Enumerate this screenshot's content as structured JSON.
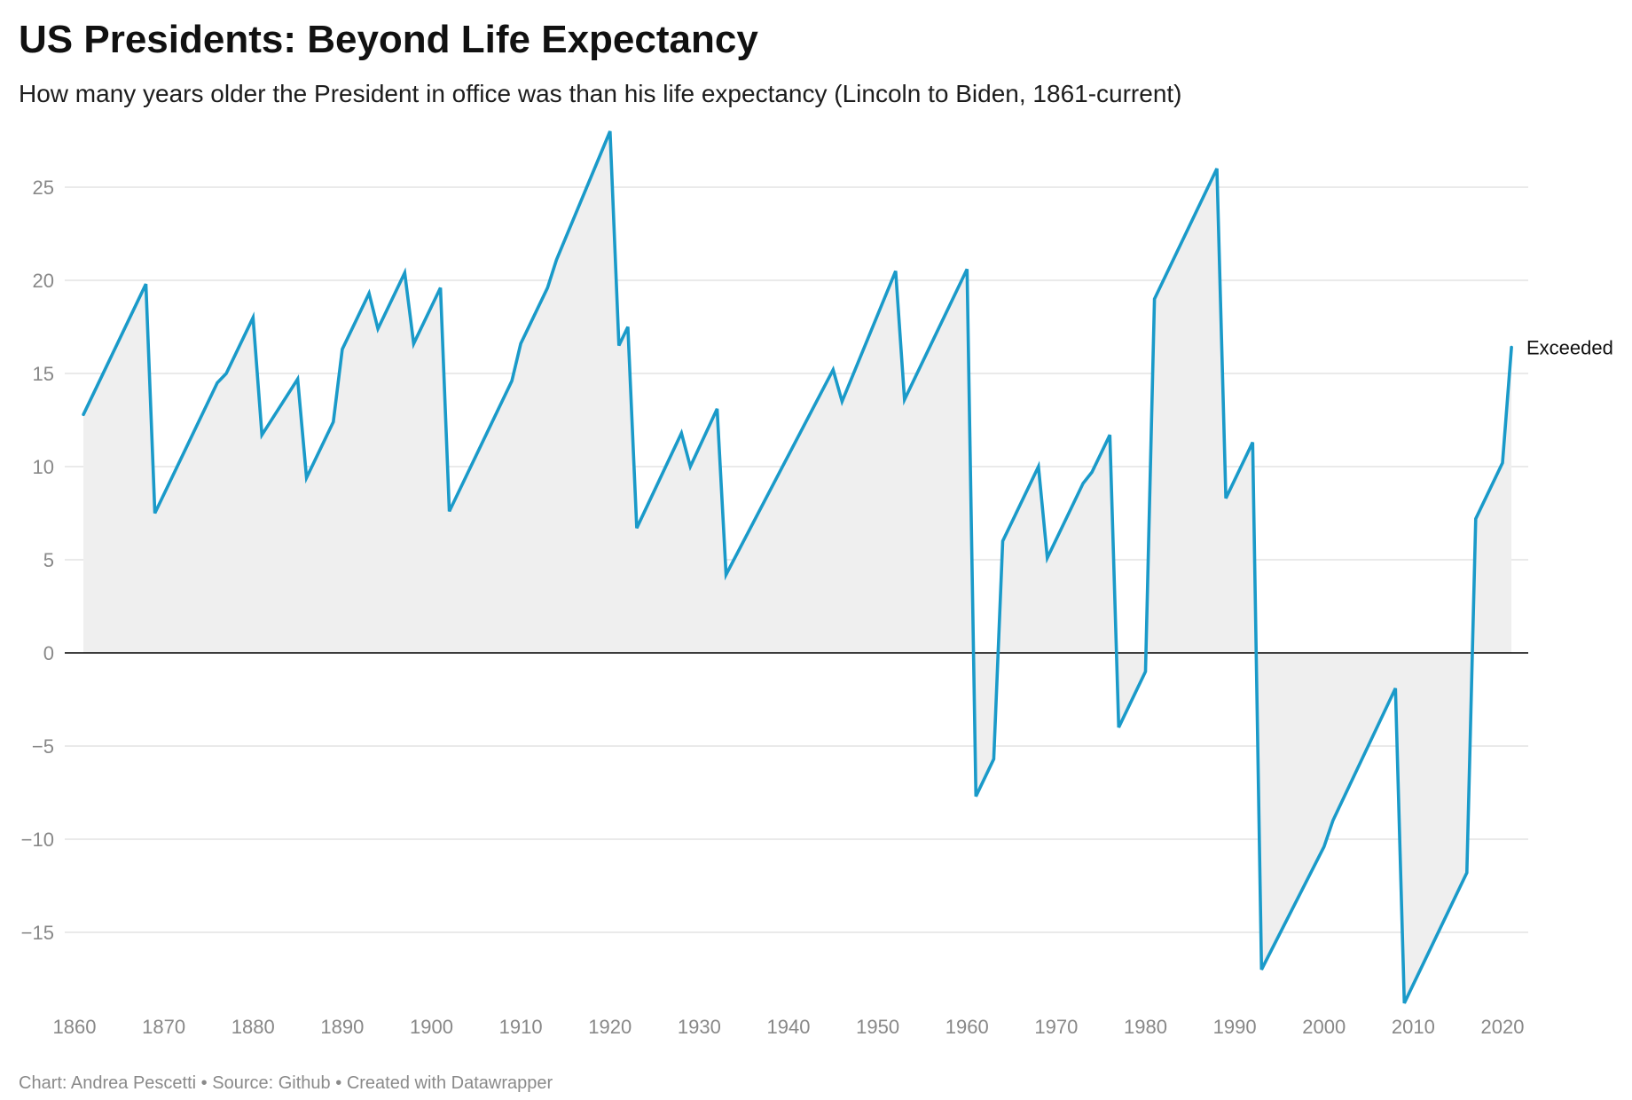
{
  "title": "US Presidents: Beyond Life Expectancy",
  "subtitle": "How many years older the President in office was than his life expectancy (Lincoln to Biden, 1861-current)",
  "footer": {
    "chart_credit": "Chart: Andrea Pescetti",
    "separator": "•",
    "source": "Source: Github",
    "tool": "Created with Datawrapper"
  },
  "colors": {
    "line": "#1a9ac9",
    "area": "#efefef",
    "zero_line": "#000000",
    "grid": "#dddddd",
    "tick_text": "#888888"
  },
  "chart_data": {
    "type": "area",
    "title": "US Presidents: Beyond Life Expectancy",
    "subtitle": "How many years older the President in office was than his life expectancy (Lincoln to Biden, 1861-current)",
    "xlabel": "",
    "ylabel": "",
    "xlim": [
      1860,
      2021
    ],
    "ylim": [
      -19,
      28
    ],
    "x_ticks": [
      1860,
      1870,
      1880,
      1890,
      1900,
      1910,
      1920,
      1930,
      1940,
      1950,
      1960,
      1970,
      1980,
      1990,
      2000,
      2010,
      2020
    ],
    "y_ticks": [
      25,
      20,
      15,
      10,
      5,
      0,
      -5,
      -10,
      -15
    ],
    "y_tick_labels": [
      "25",
      "20",
      "15",
      "10",
      "5",
      "0",
      "−5",
      "−10",
      "−15"
    ],
    "grid": true,
    "series": [
      {
        "name": "Exceeded",
        "label": "Exceeded",
        "points": [
          [
            1861,
            12.8
          ],
          [
            1868,
            19.8
          ],
          [
            1869,
            7.5
          ],
          [
            1876,
            14.5
          ],
          [
            1877,
            15.0
          ],
          [
            1880,
            18.0
          ],
          [
            1881,
            11.7
          ],
          [
            1885,
            14.7
          ],
          [
            1886,
            9.4
          ],
          [
            1889,
            12.4
          ],
          [
            1890,
            16.3
          ],
          [
            1893,
            19.3
          ],
          [
            1894,
            17.4
          ],
          [
            1897,
            20.4
          ],
          [
            1898,
            16.6
          ],
          [
            1901,
            19.6
          ],
          [
            1902,
            7.6
          ],
          [
            1909,
            14.6
          ],
          [
            1910,
            16.6
          ],
          [
            1913,
            19.6
          ],
          [
            1914,
            21.1
          ],
          [
            1920,
            28.0
          ],
          [
            1921,
            16.5
          ],
          [
            1922,
            17.5
          ],
          [
            1923,
            6.7
          ],
          [
            1928,
            11.8
          ],
          [
            1929,
            10.0
          ],
          [
            1932,
            13.1
          ],
          [
            1933,
            4.2
          ],
          [
            1945,
            15.2
          ],
          [
            1946,
            13.5
          ],
          [
            1952,
            20.5
          ],
          [
            1953,
            13.6
          ],
          [
            1960,
            20.6
          ],
          [
            1961,
            -7.7
          ],
          [
            1963,
            -5.7
          ],
          [
            1964,
            6.0
          ],
          [
            1968,
            10.0
          ],
          [
            1969,
            5.1
          ],
          [
            1973,
            9.1
          ],
          [
            1974,
            9.7
          ],
          [
            1976,
            11.7
          ],
          [
            1977,
            -4.0
          ],
          [
            1980,
            -1.0
          ],
          [
            1981,
            19.0
          ],
          [
            1988,
            26.0
          ],
          [
            1989,
            8.3
          ],
          [
            1992,
            11.3
          ],
          [
            1993,
            -17.0
          ],
          [
            2000,
            -10.4
          ],
          [
            2001,
            -9.0
          ],
          [
            2008,
            -1.9
          ],
          [
            2009,
            -18.8
          ],
          [
            2016,
            -11.8
          ],
          [
            2017,
            7.2
          ],
          [
            2020,
            10.2
          ],
          [
            2021,
            16.4
          ]
        ]
      }
    ]
  }
}
